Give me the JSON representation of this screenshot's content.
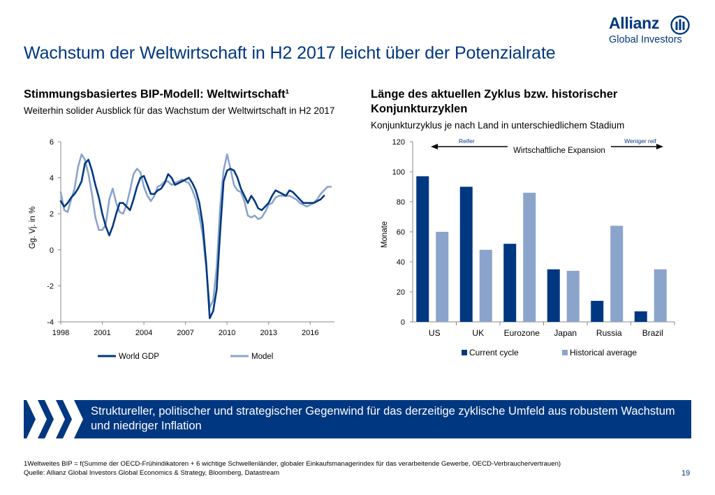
{
  "header": {
    "title": "Wachstum der Weltwirtschaft in H2 2017 leicht über der Potenzialrate",
    "logo_brand": "Allianz",
    "logo_sub": "Global Investors"
  },
  "left": {
    "title": "Stimmungsbasiertes BIP-Modell: Weltwirtschaft¹",
    "subtitle": "Weiterhin solider Ausblick für das Wachstum der Weltwirtschaft in H2 2017"
  },
  "right": {
    "title": "Länge des aktuellen Zyklus bzw. historischer Konjunkturzyklen",
    "subtitle": "Konjunkturzyklus je nach Land in unterschiedlichem Stadium"
  },
  "banner": {
    "text": "Struktureller, politischer und strategischer Gegenwind für das derzeitige zyklische Umfeld aus robustem Wachstum und niedriger Inflation"
  },
  "footer": {
    "footnote": "1Weltweites BIP = f(Summe der OECD-Frühindikatoren + 6 wichtige Schwellenländer, globaler Einkaufsmanagerindex für das verarbeitende Gewerbe, OECD-Verbrauchervertrauen)",
    "source": "Quelle: Allianz Global Investors Global Economics & Strategy, Bloomberg, Datastream",
    "page": "19"
  },
  "colors": {
    "brand": "#003781",
    "series_dark": "#003781",
    "series_light": "#8BA4CC"
  },
  "chart_data": [
    {
      "type": "line",
      "title": "",
      "xlabel": "",
      "ylabel": "Gg. Vj. in %",
      "ylim": [
        -4,
        6
      ],
      "xlim": [
        1998,
        2017.75
      ],
      "yticks": [
        "6",
        "4",
        "2",
        "0",
        "-2",
        "-4"
      ],
      "xticks": [
        "1998",
        "2001",
        "2004",
        "2007",
        "2010",
        "2013",
        "2016"
      ],
      "legend": "bottom",
      "grid": false,
      "series": [
        {
          "name": "World GDP",
          "color": "#003781",
          "x": [
            1998,
            1998.25,
            1998.5,
            1998.75,
            1999,
            1999.25,
            1999.5,
            1999.75,
            2000,
            2000.25,
            2000.5,
            2000.75,
            2001,
            2001.25,
            2001.5,
            2001.75,
            2002,
            2002.25,
            2002.5,
            2002.75,
            2003,
            2003.25,
            2003.5,
            2003.75,
            2004,
            2004.25,
            2004.5,
            2004.75,
            2005,
            2005.25,
            2005.5,
            2005.75,
            2006,
            2006.25,
            2006.5,
            2006.75,
            2007,
            2007.25,
            2007.5,
            2007.75,
            2008,
            2008.25,
            2008.5,
            2008.75,
            2009,
            2009.25,
            2009.5,
            2009.75,
            2010,
            2010.25,
            2010.5,
            2010.75,
            2011,
            2011.25,
            2011.5,
            2011.75,
            2012,
            2012.25,
            2012.5,
            2012.75,
            2013,
            2013.25,
            2013.5,
            2013.75,
            2014,
            2014.25,
            2014.5,
            2014.75,
            2015,
            2015.25,
            2015.5,
            2015.75,
            2016,
            2016.25,
            2016.5,
            2016.75,
            2017
          ],
          "y": [
            2.7,
            2.4,
            2.6,
            2.9,
            3.1,
            3.4,
            3.8,
            4.8,
            5.0,
            4.4,
            3.6,
            2.9,
            2.0,
            1.3,
            0.8,
            1.3,
            2.0,
            2.6,
            2.6,
            2.4,
            2.2,
            2.8,
            3.5,
            4.0,
            4.1,
            3.6,
            3.1,
            3.1,
            3.3,
            3.4,
            3.7,
            4.2,
            4.0,
            3.6,
            3.7,
            3.8,
            3.9,
            4.0,
            3.7,
            3.3,
            2.6,
            1.4,
            -0.8,
            -3.8,
            -3.4,
            -2.2,
            1.0,
            3.8,
            4.4,
            4.5,
            4.4,
            4.0,
            3.4,
            3.0,
            2.6,
            3.0,
            2.7,
            2.3,
            2.2,
            2.4,
            2.6,
            3.0,
            3.3,
            3.2,
            3.1,
            3.0,
            3.3,
            3.2,
            3.0,
            2.8,
            2.6,
            2.6,
            2.6,
            2.6,
            2.7,
            2.8,
            3.0
          ]
        },
        {
          "name": "Model",
          "color": "#8BA4CC",
          "x": [
            1998,
            1998.25,
            1998.5,
            1998.75,
            1999,
            1999.25,
            1999.5,
            1999.75,
            2000,
            2000.25,
            2000.5,
            2000.75,
            2001,
            2001.25,
            2001.5,
            2001.75,
            2002,
            2002.25,
            2002.5,
            2002.75,
            2003,
            2003.25,
            2003.5,
            2003.75,
            2004,
            2004.25,
            2004.5,
            2004.75,
            2005,
            2005.25,
            2005.5,
            2005.75,
            2006,
            2006.25,
            2006.5,
            2006.75,
            2007,
            2007.25,
            2007.5,
            2007.75,
            2008,
            2008.25,
            2008.5,
            2008.75,
            2009,
            2009.25,
            2009.5,
            2009.75,
            2010,
            2010.25,
            2010.5,
            2010.75,
            2011,
            2011.25,
            2011.5,
            2011.75,
            2012,
            2012.25,
            2012.5,
            2012.75,
            2013,
            2013.25,
            2013.5,
            2013.75,
            2014,
            2014.25,
            2014.5,
            2014.75,
            2015,
            2015.25,
            2015.5,
            2015.75,
            2016,
            2016.25,
            2016.5,
            2016.75,
            2017,
            2017.25,
            2017.5
          ],
          "y": [
            3.2,
            2.2,
            2.1,
            2.8,
            3.4,
            4.6,
            5.3,
            5.0,
            4.2,
            3.1,
            1.8,
            1.1,
            1.1,
            1.4,
            2.8,
            3.4,
            2.6,
            2.1,
            2.0,
            2.5,
            3.3,
            4.2,
            4.5,
            4.3,
            3.5,
            3.0,
            2.7,
            3.0,
            3.5,
            3.6,
            3.8,
            3.8,
            3.6,
            3.7,
            3.8,
            3.9,
            3.8,
            3.7,
            3.3,
            2.8,
            1.9,
            0.8,
            -1.0,
            -3.2,
            -2.8,
            -1.0,
            2.4,
            4.4,
            5.3,
            4.5,
            3.6,
            3.3,
            3.2,
            2.7,
            1.9,
            1.8,
            1.9,
            1.7,
            1.8,
            2.1,
            2.5,
            2.6,
            2.9,
            3.0,
            3.0,
            3.0,
            3.0,
            2.9,
            2.8,
            2.6,
            2.5,
            2.4,
            2.5,
            2.6,
            2.8,
            3.1,
            3.3,
            3.5,
            3.5
          ]
        }
      ]
    },
    {
      "type": "bar",
      "title": "",
      "xlabel": "",
      "ylabel": "Monate",
      "ylim": [
        0,
        120
      ],
      "yticks": [
        "120",
        "100",
        "80",
        "60",
        "40",
        "20",
        "0"
      ],
      "categories": [
        "US",
        "UK",
        "Eurozone",
        "Japan",
        "Russia",
        "Brazil"
      ],
      "legend": "bottom",
      "grid": false,
      "series": [
        {
          "name": "Current cycle",
          "color": "#003781",
          "values": [
            97,
            90,
            52,
            35,
            14,
            7
          ]
        },
        {
          "name": "Historical average",
          "color": "#8BA4CC",
          "values": [
            60,
            48,
            86,
            34,
            64,
            35
          ]
        }
      ],
      "annotation": {
        "left_label": "Reifer",
        "center_label": "Wirtschaftliche Expansion",
        "right_label": "Weniger reif"
      }
    }
  ]
}
